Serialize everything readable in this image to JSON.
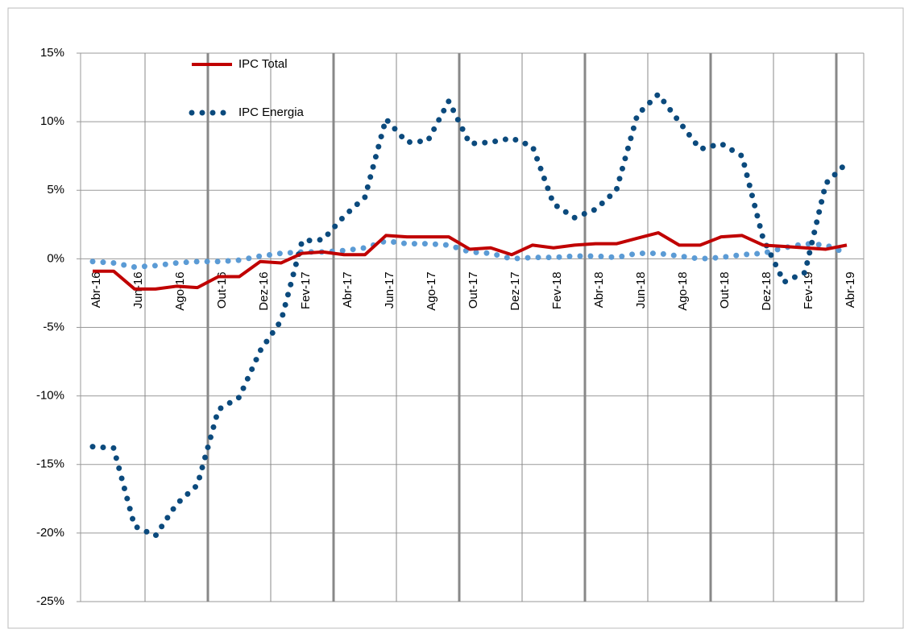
{
  "chart_data": {
    "type": "line",
    "categories": [
      "Abr-16",
      null,
      "Jun-16",
      null,
      "Ago-16",
      null,
      "Out-16",
      null,
      "Dez-16",
      null,
      "Fev-17",
      null,
      "Abr-17",
      null,
      "Jun-17",
      null,
      "Ago-17",
      null,
      "Out-17",
      null,
      "Dez-17",
      null,
      "Fev-18",
      null,
      "Abr-18",
      null,
      "Jun-18",
      null,
      "Ago-18",
      null,
      "Out-18",
      null,
      "Dez-18",
      null,
      "Fev-19",
      null,
      "Abr-19"
    ],
    "series": [
      {
        "name": "IPC Total",
        "color": "#c00000",
        "style": "solid",
        "values": [
          -0.9,
          -0.9,
          -2.2,
          -2.2,
          -2.0,
          -2.1,
          -1.3,
          -1.3,
          -0.2,
          -0.3,
          0.4,
          0.5,
          0.3,
          0.3,
          1.7,
          1.6,
          1.6,
          1.6,
          0.7,
          0.8,
          0.3,
          1.0,
          0.8,
          1.0,
          1.1,
          1.1,
          1.5,
          1.9,
          1.0,
          1.0,
          1.6,
          1.7,
          1.0,
          0.9,
          0.8,
          0.7,
          1.0
        ]
      },
      {
        "name": "IPC Energia",
        "color": "#0b4a7d",
        "style": "dotted",
        "values": [
          -13.7,
          -13.8,
          -19.5,
          -20.2,
          -17.9,
          -16.5,
          -11.0,
          -10.1,
          -6.7,
          -4.5,
          1.3,
          1.4,
          3.1,
          4.5,
          10.2,
          8.5,
          8.6,
          11.5,
          8.4,
          8.5,
          8.8,
          8.2,
          4.0,
          3.0,
          3.6,
          5.0,
          10.5,
          12.0,
          10.0,
          8.0,
          8.4,
          7.5,
          1.5,
          -1.7,
          -1.0,
          5.5,
          7.0
        ]
      },
      {
        "color": "#5b9bd5",
        "style": "dotted",
        "values": [
          -0.2,
          -0.3,
          -0.6,
          -0.5,
          -0.3,
          -0.2,
          -0.2,
          -0.1,
          0.2,
          0.4,
          0.5,
          0.5,
          0.6,
          0.8,
          1.3,
          1.1,
          1.1,
          1.0,
          0.5,
          0.4,
          0.0,
          0.1,
          0.1,
          0.2,
          0.2,
          0.1,
          0.4,
          0.4,
          0.2,
          0.0,
          0.1,
          0.3,
          0.4,
          0.8,
          1.1,
          1.0,
          0.4
        ]
      }
    ],
    "ylim": [
      -25,
      15
    ],
    "yticks": [
      {
        "value": -25,
        "label": "-25%"
      },
      {
        "value": -20,
        "label": "-20%"
      },
      {
        "value": -15,
        "label": "-15%"
      },
      {
        "value": -10,
        "label": "-10%"
      },
      {
        "value": -5,
        "label": "-5%"
      },
      {
        "value": 0,
        "label": "0%"
      },
      {
        "value": 5,
        "label": "5%"
      },
      {
        "value": 10,
        "label": "10%"
      },
      {
        "value": 15,
        "label": "15%"
      }
    ],
    "grid": true,
    "legend": "top-left"
  }
}
